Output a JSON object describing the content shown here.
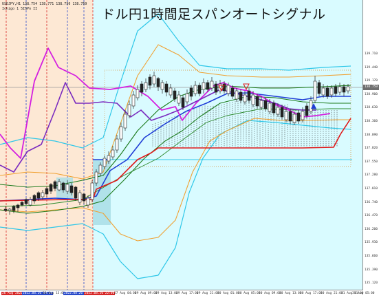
{
  "chart": {
    "title": "ドル円1時間足スパンオートシグナル",
    "symbol_line": "USDJPY,H1  138.754 138.771 138.750 138.759",
    "indicator_line": "Ichigo 1 5ISPn II",
    "current_price": "138.759"
  },
  "price_axis": {
    "labels": [
      "139.710",
      "139.440",
      "139.170",
      "138.900",
      "138.630",
      "138.360",
      "138.090",
      "137.820",
      "137.550",
      "137.280",
      "137.010",
      "136.740",
      "136.470",
      "136.200",
      "135.930",
      "135.660",
      "135.390",
      "135.120"
    ]
  },
  "time_axis": {
    "labels": [
      {
        "text": "26 Aug 2022",
        "style": "hl"
      },
      {
        "text": "2022.08.26 09:00",
        "style": "hl-blue"
      },
      {
        "text": "26 Aug 13:00",
        "style": ""
      },
      {
        "text": "2022.08.26 18:00",
        "style": "hl-blue"
      },
      {
        "text": "2022.08.26 22:00",
        "style": "hl"
      },
      {
        "text": "27 Aug 04:00",
        "style": ""
      },
      {
        "text": "29 Aug 09:00",
        "style": ""
      },
      {
        "text": "29 Aug 13:00",
        "style": ""
      },
      {
        "text": "29 Aug 17:00",
        "style": ""
      },
      {
        "text": "29 Aug 21:00",
        "style": ""
      },
      {
        "text": "30 Aug 01:00",
        "style": ""
      },
      {
        "text": "30 Aug 05:00",
        "style": ""
      },
      {
        "text": "30 Aug 09:00",
        "style": ""
      },
      {
        "text": "30 Aug 13:00",
        "style": ""
      },
      {
        "text": "30 Aug 17:00",
        "style": ""
      },
      {
        "text": "30 Aug 21:00",
        "style": ""
      },
      {
        "text": "31 Aug 01:00",
        "style": ""
      },
      {
        "text": "31 Aug 05:00",
        "style": ""
      }
    ]
  },
  "colors": {
    "background": "#d9fbff",
    "session_band": "#fde8d4",
    "candle_up": "#ffffff",
    "candle_down": "#222222",
    "span_cloud": "#2b2b2b",
    "kumo_band": "#a8dde6",
    "bb_outer": "#2ec7e8",
    "bb_mid": "#f0a030",
    "line_purple": "#d41ee0",
    "line_violet": "#7a2bbf",
    "line_blue": "#1f3dd6",
    "line_green": "#1a7a1a",
    "line_red": "#e01818"
  }
}
